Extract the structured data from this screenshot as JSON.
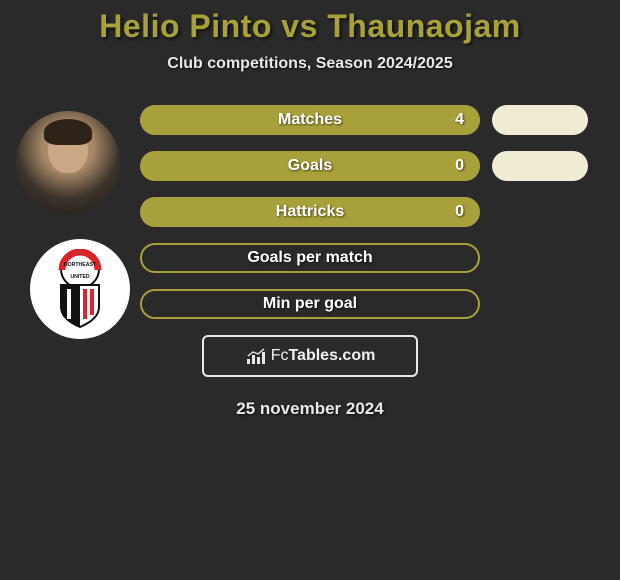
{
  "title": "Helio Pinto vs Thaunaojam",
  "subtitle": "Club competitions, Season 2024/2025",
  "colors": {
    "accent": "#a8a03a",
    "background": "#2a2a2a",
    "pill": "#f0ecd4",
    "text_light": "#e8e8e8",
    "white": "#ffffff",
    "club_red": "#d9252a",
    "club_black": "#111111"
  },
  "stats": [
    {
      "label": "Matches",
      "value": "4",
      "filled": true,
      "has_pill": true
    },
    {
      "label": "Goals",
      "value": "0",
      "filled": true,
      "has_pill": true
    },
    {
      "label": "Hattricks",
      "value": "0",
      "filled": true,
      "has_pill": false
    },
    {
      "label": "Goals per match",
      "value": "",
      "filled": false,
      "has_pill": false
    },
    {
      "label": "Min per goal",
      "value": "",
      "filled": false,
      "has_pill": false
    }
  ],
  "brand": {
    "prefix": "Fc",
    "suffix": "Tables.com"
  },
  "date": "25 november 2024",
  "club_text": {
    "top": "NORTHEAST",
    "bottom": "UNITED"
  }
}
